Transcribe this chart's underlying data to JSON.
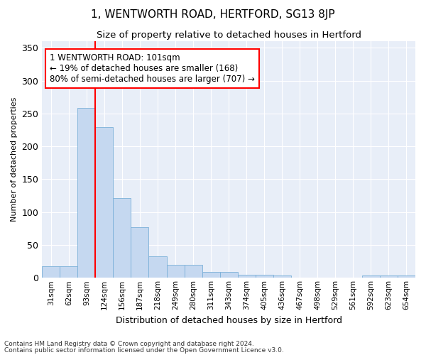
{
  "title": "1, WENTWORTH ROAD, HERTFORD, SG13 8JP",
  "subtitle": "Size of property relative to detached houses in Hertford",
  "xlabel": "Distribution of detached houses by size in Hertford",
  "ylabel": "Number of detached properties",
  "categories": [
    "31sqm",
    "62sqm",
    "93sqm",
    "124sqm",
    "156sqm",
    "187sqm",
    "218sqm",
    "249sqm",
    "280sqm",
    "311sqm",
    "343sqm",
    "374sqm",
    "405sqm",
    "436sqm",
    "467sqm",
    "498sqm",
    "529sqm",
    "561sqm",
    "592sqm",
    "623sqm",
    "654sqm"
  ],
  "values": [
    18,
    18,
    258,
    229,
    121,
    77,
    33,
    20,
    20,
    9,
    9,
    5,
    5,
    4,
    0,
    0,
    0,
    0,
    4,
    4,
    4
  ],
  "bar_color": "#c5d8f0",
  "bar_edgecolor": "#7ab0d8",
  "red_line_x": 2.5,
  "annotation_text": "1 WENTWORTH ROAD: 101sqm\n← 19% of detached houses are smaller (168)\n80% of semi-detached houses are larger (707) →",
  "ylim": [
    0,
    360
  ],
  "yticks": [
    0,
    50,
    100,
    150,
    200,
    250,
    300,
    350
  ],
  "bg_color": "#e8eef8",
  "grid_color": "#ffffff",
  "footer_line1": "Contains HM Land Registry data © Crown copyright and database right 2024.",
  "footer_line2": "Contains public sector information licensed under the Open Government Licence v3.0."
}
